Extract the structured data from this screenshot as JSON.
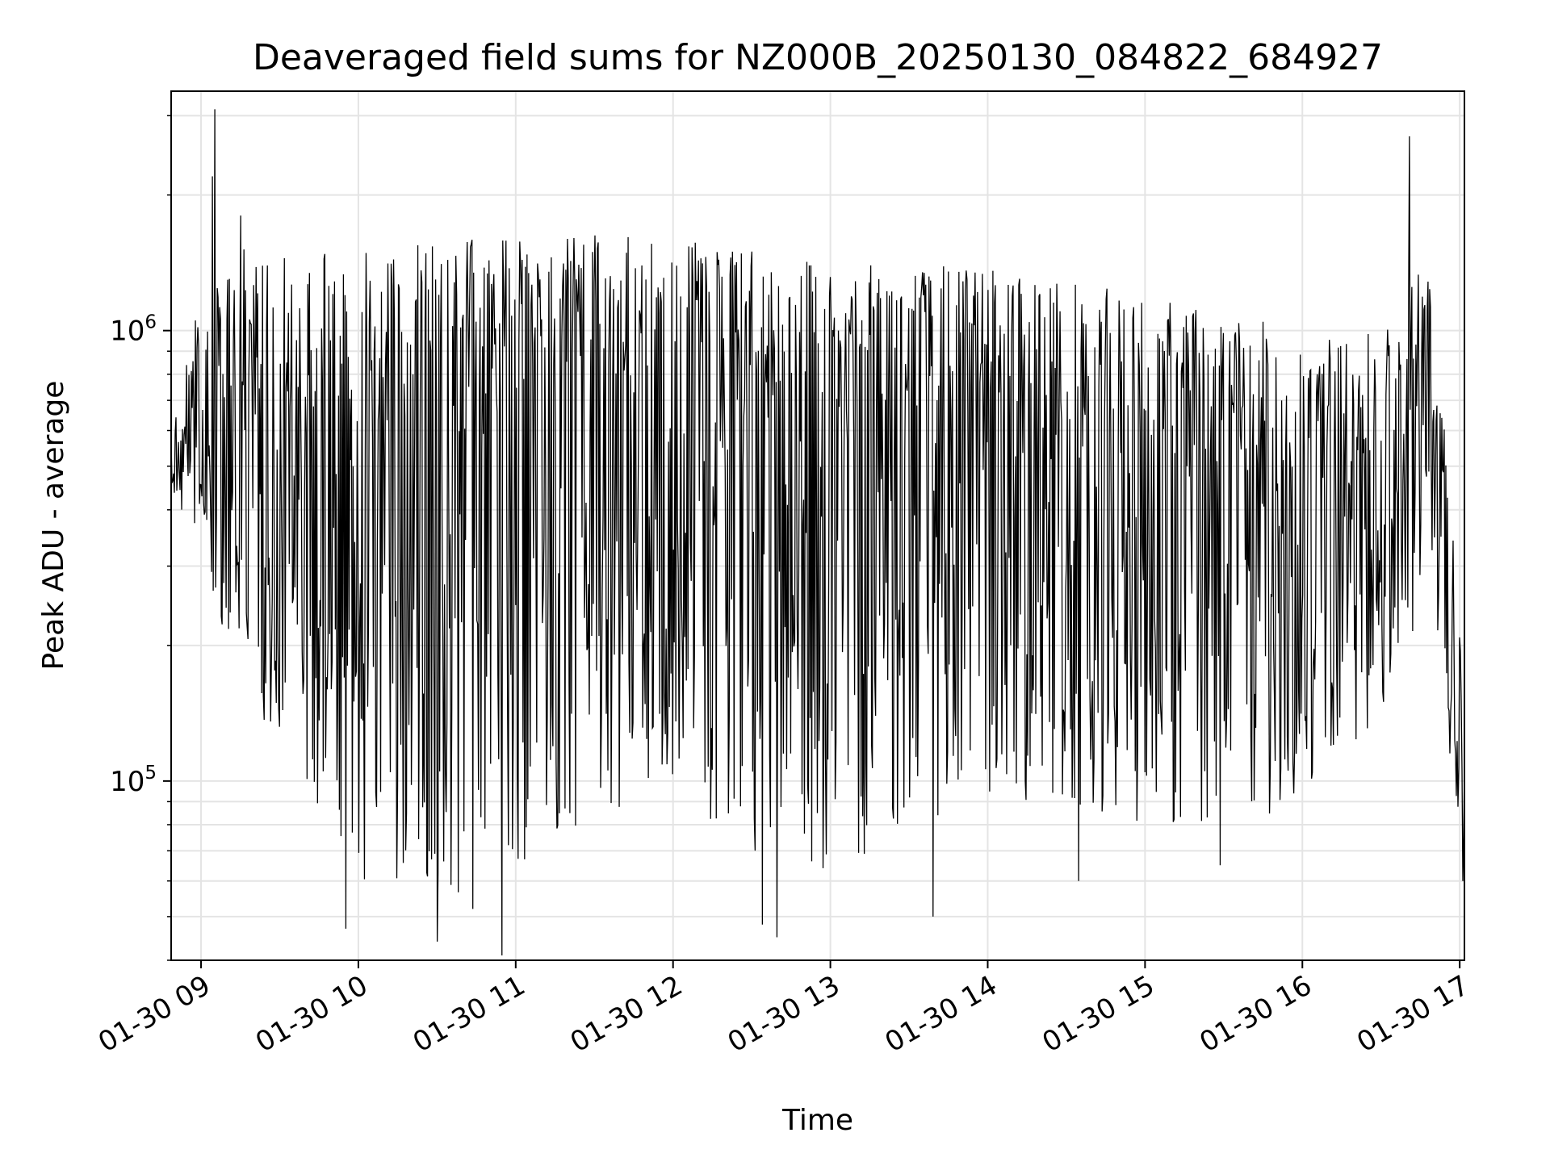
{
  "chart_data": {
    "type": "line",
    "title": "Deaveraged field sums for NZ000B_20250130_084822_684927",
    "xlabel": "Time",
    "ylabel": "Peak ADU - average",
    "x_ticks": [
      "01-30 09",
      "01-30 10",
      "01-30 11",
      "01-30 12",
      "01-30 13",
      "01-30 14",
      "01-30 15",
      "01-30 16",
      "01-30 17"
    ],
    "x_tick_hours": [
      9,
      10,
      11,
      12,
      13,
      14,
      15,
      16,
      17
    ],
    "xlim_hours": [
      8.81,
      17.03
    ],
    "y_scale": "log",
    "ylim": [
      40000,
      3400000
    ],
    "y_major_ticks": [
      {
        "value": 100000,
        "base": "10",
        "exp": "5"
      },
      {
        "value": 1000000,
        "base": "10",
        "exp": "6"
      }
    ],
    "y_minor_ticks": [
      40000,
      50000,
      60000,
      70000,
      80000,
      90000,
      200000,
      300000,
      400000,
      500000,
      600000,
      700000,
      800000,
      900000,
      2000000,
      3000000
    ],
    "grid": true,
    "line_color": "#000000",
    "series_profile": {
      "hours": [
        8.81,
        9.0,
        9.3,
        9.6,
        10.0,
        10.5,
        11.0,
        11.5,
        12.0,
        12.5,
        13.0,
        13.5,
        14.0,
        14.5,
        15.0,
        15.5,
        16.0,
        16.3,
        16.6,
        16.8,
        16.95,
        17.03
      ],
      "center": [
        500000,
        600000,
        350000,
        400000,
        450000,
        500000,
        700000,
        750000,
        700000,
        650000,
        600000,
        550000,
        500000,
        450000,
        420000,
        400000,
        400000,
        420000,
        500000,
        700000,
        150000,
        100000
      ],
      "low": [
        450000,
        300000,
        150000,
        100000,
        60000,
        55000,
        60000,
        80000,
        90000,
        70000,
        60000,
        80000,
        90000,
        90000,
        80000,
        75000,
        90000,
        120000,
        150000,
        300000,
        100000,
        65000
      ],
      "high": [
        600000,
        1200000,
        1600000,
        1500000,
        1500000,
        1600000,
        1600000,
        1700000,
        1600000,
        1500000,
        1400000,
        1400000,
        1400000,
        1300000,
        1200000,
        1100000,
        1000000,
        950000,
        1100000,
        1600000,
        400000,
        150000
      ]
    },
    "notable_points": [
      {
        "hour": 9.09,
        "value": 3100000
      },
      {
        "hour": 9.07,
        "value": 2200000
      },
      {
        "hour": 16.68,
        "value": 2700000
      },
      {
        "hour": 9.25,
        "value": 1800000
      },
      {
        "hour": 10.5,
        "value": 44000
      },
      {
        "hour": 10.91,
        "value": 41000
      },
      {
        "hour": 13.65,
        "value": 50000
      },
      {
        "hour": 12.66,
        "value": 45000
      },
      {
        "hour": 9.92,
        "value": 47000
      },
      {
        "hour": 10.73,
        "value": 52000
      },
      {
        "hour": 12.57,
        "value": 48000
      },
      {
        "hour": 14.58,
        "value": 60000
      },
      {
        "hour": 15.48,
        "value": 65000
      },
      {
        "hour": 17.02,
        "value": 60000
      }
    ],
    "sample_count": 1600
  }
}
